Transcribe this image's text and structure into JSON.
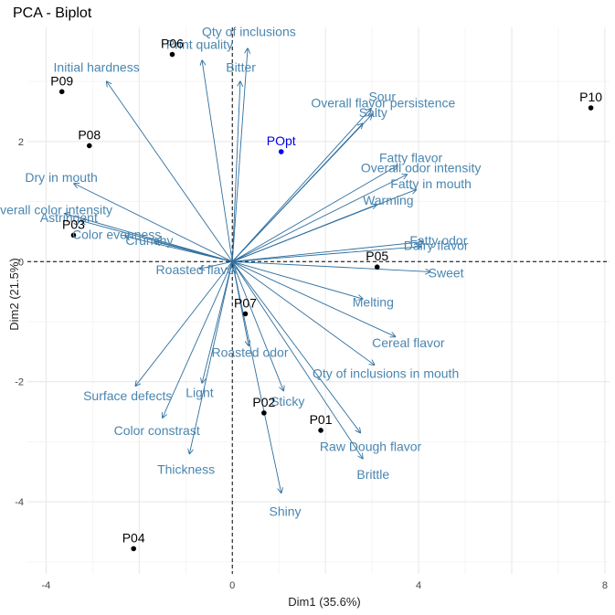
{
  "chart_data": {
    "type": "scatter",
    "title": "PCA - Biplot",
    "xlabel": "Dim1 (35.6%)",
    "ylabel": "Dim2 (21.5%)",
    "xlim": [
      -4.4,
      8.1
    ],
    "ylim": [
      -5.2,
      3.9
    ],
    "xticks": [
      -4,
      0,
      4,
      8
    ],
    "yticks": [
      -4,
      -2,
      0,
      2
    ],
    "grid": true,
    "colors": {
      "variables": "#2f6f9f",
      "variable_text": "#4a86b0",
      "individuals": "#000000",
      "supplementary": "#0000ee",
      "reference_lines": "#000000"
    },
    "individuals": [
      {
        "name": "P06",
        "x": -1.29,
        "y": 3.45
      },
      {
        "name": "P09",
        "x": -3.66,
        "y": 2.83
      },
      {
        "name": "P08",
        "x": -3.07,
        "y": 1.93
      },
      {
        "name": "P03",
        "x": -3.41,
        "y": 0.44
      },
      {
        "name": "P10",
        "x": 7.7,
        "y": 2.56
      },
      {
        "name": "P05",
        "x": 3.11,
        "y": -0.09
      },
      {
        "name": "P07",
        "x": 0.28,
        "y": -0.87
      },
      {
        "name": "P02",
        "x": 0.68,
        "y": -2.52
      },
      {
        "name": "P01",
        "x": 1.9,
        "y": -2.81
      },
      {
        "name": "P04",
        "x": -2.12,
        "y": -4.78
      }
    ],
    "supplementary_individuals": [
      {
        "name": "POpt",
        "x": 1.05,
        "y": 1.83
      }
    ],
    "variables": [
      {
        "name": "Qty of inclusions",
        "x": 0.33,
        "y": 3.55
      },
      {
        "name": "Print quality",
        "x": -0.65,
        "y": 3.35
      },
      {
        "name": "Bitter",
        "x": 0.17,
        "y": 3.0
      },
      {
        "name": "Initial hardness",
        "x": -2.7,
        "y": 3.0
      },
      {
        "name": "Sour",
        "x": 2.98,
        "y": 2.55
      },
      {
        "name": "Overall flavor persistence",
        "x": 3.0,
        "y": 2.45
      },
      {
        "name": "Salty",
        "x": 2.8,
        "y": 2.3
      },
      {
        "name": "Fatty flavor",
        "x": 3.55,
        "y": 1.6
      },
      {
        "name": "Overall odor intensity",
        "x": 3.75,
        "y": 1.45
      },
      {
        "name": "Fatty in mouth",
        "x": 3.95,
        "y": 1.2
      },
      {
        "name": "Warming",
        "x": 3.1,
        "y": 0.95
      },
      {
        "name": "Dry in mouth",
        "x": -3.4,
        "y": 1.3
      },
      {
        "name": "Overall color intensity",
        "x": -3.6,
        "y": 0.8
      },
      {
        "name": "Astringent",
        "x": -3.25,
        "y": 0.68
      },
      {
        "name": "Color evenness",
        "x": -2.3,
        "y": 0.42
      },
      {
        "name": "Crunchy",
        "x": -1.65,
        "y": 0.33
      },
      {
        "name": "Roasted flavor",
        "x": -0.7,
        "y": -0.12
      },
      {
        "name": "Fatty odor",
        "x": 4.1,
        "y": 0.33
      },
      {
        "name": "Dairy flavor",
        "x": 4.05,
        "y": 0.25
      },
      {
        "name": "Sweet",
        "x": 4.25,
        "y": -0.17
      },
      {
        "name": "Melting",
        "x": 2.8,
        "y": -0.62
      },
      {
        "name": "Cereal flavor",
        "x": 3.5,
        "y": -1.25
      },
      {
        "name": "Qty of inclusions in mouth",
        "x": 3.05,
        "y": -1.72
      },
      {
        "name": "Roasted odor",
        "x": 0.35,
        "y": -1.4
      },
      {
        "name": "Sticky",
        "x": 1.1,
        "y": -2.15
      },
      {
        "name": "Raw Dough flavor",
        "x": 2.75,
        "y": -2.85
      },
      {
        "name": "Brittle",
        "x": 2.8,
        "y": -3.28
      },
      {
        "name": "Shiny",
        "x": 1.05,
        "y": -3.85
      },
      {
        "name": "Surface defects",
        "x": -2.08,
        "y": -2.07
      },
      {
        "name": "Light",
        "x": -0.65,
        "y": -2.02
      },
      {
        "name": "Color constrast",
        "x": -1.5,
        "y": -2.6
      },
      {
        "name": "Thickness",
        "x": -0.92,
        "y": -3.2
      }
    ]
  }
}
